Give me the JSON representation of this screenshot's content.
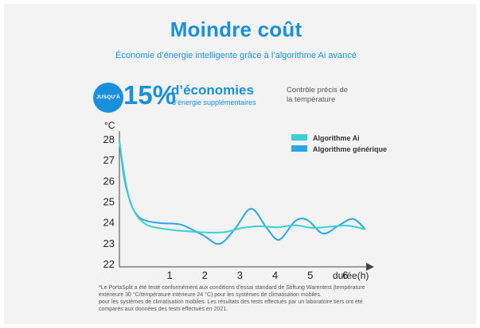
{
  "header": {
    "title": "Moindre coût",
    "subtitle": "Économie d’énergie intelligente grâce à l’algorithme Ai avancé"
  },
  "highlight": {
    "badge": "JUSQU'À",
    "percent": "15%",
    "text": "d’économies",
    "subtext": "d’énergie supplémentaires"
  },
  "note": [
    "Contrôle précis de",
    "la température"
  ],
  "footnote": [
    "*Le PortaSplit a été testé conformément aux conditions d'essai standard de Stiftung Warentest (température",
    "extérieure 30 °C/température intérieure 24 °C) pour les systèmes de climatisation mobiles.",
    "pour les systèmes de climatisation mobiles. Les résultats des tests effectués par un laboratoire tiers ont été",
    "comparés aux données des tests effectués en 2021."
  ],
  "colors": {
    "accent": "#1a8fdc",
    "ai": "#3cd0d6",
    "generic": "#2aa6e8"
  },
  "chart_data": {
    "type": "line",
    "ylabel": "°C",
    "xlabel": "durée(h)",
    "ylim": [
      22,
      28
    ],
    "xlim": [
      0,
      7
    ],
    "yticks": [
      22,
      23,
      24,
      25,
      26,
      27,
      28
    ],
    "xticks": [
      1,
      2,
      3,
      4,
      5,
      6
    ],
    "legend": "top-right",
    "series": [
      {
        "name": "Algorithme Ai",
        "color": "#3cd0d6",
        "points": [
          [
            0,
            27.9
          ],
          [
            0.15,
            26.2
          ],
          [
            0.3,
            25.0
          ],
          [
            0.5,
            24.3
          ],
          [
            0.75,
            23.9
          ],
          [
            1.0,
            23.75
          ],
          [
            1.5,
            23.62
          ],
          [
            2.0,
            23.55
          ],
          [
            2.5,
            23.5
          ],
          [
            3.0,
            23.52
          ],
          [
            3.5,
            23.72
          ],
          [
            4.0,
            23.8
          ],
          [
            4.5,
            23.75
          ],
          [
            5.0,
            23.85
          ],
          [
            5.5,
            23.72
          ],
          [
            6.0,
            23.78
          ],
          [
            6.5,
            23.83
          ],
          [
            7.0,
            23.65
          ]
        ]
      },
      {
        "name": "Algorithme générique",
        "color": "#2aa6e8",
        "points": [
          [
            0,
            27.9
          ],
          [
            0.15,
            26.0
          ],
          [
            0.35,
            24.8
          ],
          [
            0.55,
            24.25
          ],
          [
            0.8,
            24.05
          ],
          [
            1.2,
            23.95
          ],
          [
            1.7,
            23.9
          ],
          [
            2.0,
            23.7
          ],
          [
            2.4,
            23.35
          ],
          [
            2.85,
            22.95
          ],
          [
            3.3,
            23.7
          ],
          [
            3.75,
            24.65
          ],
          [
            4.2,
            23.7
          ],
          [
            4.55,
            23.15
          ],
          [
            5.0,
            24.05
          ],
          [
            5.35,
            24.1
          ],
          [
            5.8,
            23.45
          ],
          [
            6.25,
            23.85
          ],
          [
            6.65,
            24.15
          ],
          [
            7.0,
            23.65
          ]
        ]
      }
    ]
  }
}
